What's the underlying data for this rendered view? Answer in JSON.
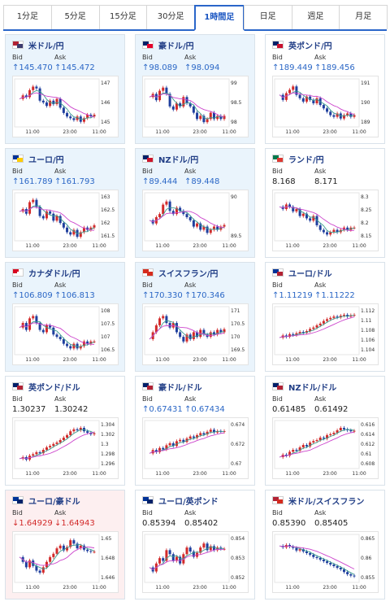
{
  "tabs": [
    "1分足",
    "5分足",
    "15分足",
    "30分足",
    "1時間足",
    "日足",
    "週足",
    "月足"
  ],
  "active_tab": 4,
  "labels": {
    "bid": "Bid",
    "ask": "Ask"
  },
  "colors": {
    "up": "#2b67c6",
    "down": "#d22a2a",
    "ma_short": "#3a9c8f",
    "ma_long": "#cc44cc",
    "candle_up": "#d22a2a",
    "candle_down": "#1f3f9e"
  },
  "cards": [
    {
      "name": "米ドル/円",
      "flag": [
        "#b22234",
        "#3c3b6e"
      ],
      "bid": "↑145.470",
      "ask": "↑145.472",
      "direction": "up",
      "bg": "blue",
      "y_ticks": [
        "147",
        "146",
        "145"
      ],
      "x_ticks": [
        "11:00",
        "23:00",
        "11:00"
      ],
      "series": [
        146.4,
        146.6,
        146.5,
        146.9,
        147.1,
        147.0,
        146.3,
        146.2,
        146.0,
        146.3,
        146.1,
        146.4,
        145.9,
        145.6,
        145.4,
        145.3,
        145.2,
        145.4,
        145.1,
        145.3,
        145.5,
        145.4,
        145.5
      ],
      "yrange": [
        144.9,
        147.4
      ]
    },
    {
      "name": "豪ドル/円",
      "flag": [
        "#012169",
        "#e4002b"
      ],
      "bid": "↑98.089",
      "ask": "↑98.094",
      "direction": "up",
      "bg": "blue",
      "y_ticks": [
        "99",
        "98.5",
        "98"
      ],
      "x_ticks": [
        "11:00",
        "23:00",
        "11:00"
      ],
      "series": [
        98.7,
        98.8,
        98.6,
        98.9,
        99.0,
        98.8,
        98.4,
        98.3,
        98.5,
        98.4,
        98.7,
        98.5,
        98.4,
        98.2,
        98.0,
        98.1,
        97.9,
        98.0,
        98.2,
        98.0,
        98.1,
        98.0,
        98.1
      ],
      "yrange": [
        97.8,
        99.2
      ]
    },
    {
      "name": "英ポンド/円",
      "flag": [
        "#012169",
        "#c8102e"
      ],
      "bid": "↑189.449",
      "ask": "↑189.456",
      "direction": "up",
      "bg": "plain",
      "y_ticks": [
        "191",
        "190",
        "189"
      ],
      "x_ticks": [
        "11:00",
        "23:00",
        "11:00"
      ],
      "series": [
        190.6,
        190.3,
        190.7,
        190.9,
        191.1,
        190.6,
        190.4,
        190.2,
        190.5,
        190.3,
        190.1,
        190.4,
        190.0,
        189.8,
        189.6,
        189.4,
        189.3,
        189.5,
        189.2,
        189.4,
        189.5,
        189.3,
        189.4
      ],
      "yrange": [
        188.8,
        191.4
      ]
    },
    {
      "name": "ユーロ/円",
      "flag": [
        "#003399",
        "#ffcc00"
      ],
      "bid": "↑161.789",
      "ask": "↑161.793",
      "direction": "up",
      "bg": "blue",
      "y_ticks": [
        "163",
        "162.5",
        "162",
        "161.5"
      ],
      "x_ticks": [
        "11:00",
        "23:00",
        "11:00"
      ],
      "series": [
        162.4,
        162.5,
        162.3,
        162.8,
        162.9,
        162.6,
        162.2,
        162.1,
        162.4,
        162.3,
        162.0,
        162.2,
        161.9,
        161.7,
        161.5,
        161.4,
        161.6,
        161.3,
        161.5,
        161.7,
        161.6,
        161.7,
        161.8
      ],
      "yrange": [
        161.2,
        163.1
      ]
    },
    {
      "name": "NZドル/円",
      "flag": [
        "#012169",
        "#cc142b"
      ],
      "bid": "↑89.444",
      "ask": "↑89.448",
      "direction": "up",
      "bg": "blue",
      "y_ticks": [
        "90",
        "89.5"
      ],
      "x_ticks": [
        "11:00",
        "23:00",
        "11:00"
      ],
      "series": [
        89.6,
        89.5,
        89.7,
        89.8,
        90.1,
        90.2,
        89.9,
        89.8,
        90.0,
        89.9,
        89.8,
        89.7,
        89.6,
        89.4,
        89.5,
        89.3,
        89.4,
        89.2,
        89.3,
        89.4,
        89.3,
        89.4,
        89.45
      ],
      "yrange": [
        89.0,
        90.4
      ]
    },
    {
      "name": "ランド/円",
      "flag": [
        "#007a4d",
        "#de3831"
      ],
      "bid": "8.168",
      "ask": "8.171",
      "direction": "none",
      "bg": "plain",
      "y_ticks": [
        "8.3",
        "8.25",
        "8.2",
        "8.15"
      ],
      "x_ticks": [
        "11:00",
        "23:00",
        "11:00"
      ],
      "series": [
        8.26,
        8.25,
        8.27,
        8.26,
        8.24,
        8.25,
        8.22,
        8.23,
        8.21,
        8.2,
        8.22,
        8.18,
        8.16,
        8.15,
        8.14,
        8.15,
        8.16,
        8.15,
        8.16,
        8.17,
        8.16,
        8.17,
        8.17
      ],
      "yrange": [
        8.12,
        8.31
      ]
    },
    {
      "name": "カナダドル/円",
      "flag": [
        "#d80621",
        "#ffffff"
      ],
      "bid": "↑106.809",
      "ask": "↑106.813",
      "direction": "up",
      "bg": "blue",
      "y_ticks": [
        "108",
        "107.5",
        "107",
        "106.5"
      ],
      "x_ticks": [
        "11:00",
        "23:00",
        "11:00"
      ],
      "series": [
        107.4,
        107.6,
        107.3,
        107.8,
        107.9,
        107.6,
        107.3,
        107.2,
        107.5,
        107.4,
        107.1,
        107.0,
        106.9,
        106.7,
        106.6,
        106.5,
        106.7,
        106.5,
        106.6,
        106.8,
        106.7,
        106.8,
        106.8
      ],
      "yrange": [
        106.3,
        108.2
      ]
    },
    {
      "name": "スイスフラン/円",
      "flag": [
        "#d52b1e",
        "#d52b1e"
      ],
      "bid": "↑170.330",
      "ask": "↑170.346",
      "direction": "up",
      "bg": "blue",
      "y_ticks": [
        "171",
        "170.5",
        "170",
        "169.5"
      ],
      "x_ticks": [
        "11:00",
        "23:00",
        "11:00"
      ],
      "series": [
        169.9,
        170.2,
        170.5,
        170.8,
        170.9,
        170.6,
        170.4,
        170.6,
        170.2,
        170.0,
        169.8,
        170.1,
        169.9,
        170.2,
        170.0,
        170.3,
        170.1,
        170.0,
        170.2,
        170.1,
        170.3,
        170.2,
        170.33
      ],
      "yrange": [
        169.3,
        171.2
      ]
    },
    {
      "name": "ユーロ/ドル",
      "flag": [
        "#003399",
        "#b22234"
      ],
      "bid": "↑1.11219",
      "ask": "↑1.11222",
      "direction": "up",
      "bg": "plain",
      "y_ticks": [
        "1.112",
        "1.11",
        "1.108",
        "1.106",
        "1.104"
      ],
      "x_ticks": [
        "11:00",
        "23:00",
        "11:00"
      ],
      "series": [
        1.107,
        1.1075,
        1.1072,
        1.1078,
        1.1076,
        1.108,
        1.1083,
        1.1081,
        1.1085,
        1.109,
        1.1093,
        1.1098,
        1.1102,
        1.1108,
        1.1112,
        1.1115,
        1.1118,
        1.1116,
        1.112,
        1.1122,
        1.1118,
        1.1121,
        1.1122
      ],
      "yrange": [
        1.1035,
        1.1135
      ]
    },
    {
      "name": "英ポンド/ドル",
      "flag": [
        "#012169",
        "#b22234"
      ],
      "bid": "1.30237",
      "ask": "1.30242",
      "direction": "none",
      "bg": "plain",
      "y_ticks": [
        "1.304",
        "1.302",
        "1.3",
        "1.298",
        "1.296"
      ],
      "x_ticks": [
        "11:00",
        "23:00",
        "11:00"
      ],
      "series": [
        1.2972,
        1.2975,
        1.297,
        1.2978,
        1.2981,
        1.2985,
        1.2983,
        1.299,
        1.2995,
        1.2998,
        1.3002,
        1.3005,
        1.301,
        1.3015,
        1.302,
        1.3028,
        1.3032,
        1.303,
        1.3035,
        1.3028,
        1.3025,
        1.3022,
        1.3024
      ],
      "yrange": [
        1.2955,
        1.3045
      ]
    },
    {
      "name": "豪ドル/ドル",
      "flag": [
        "#012169",
        "#b22234"
      ],
      "bid": "↑0.67431",
      "ask": "↑0.67434",
      "direction": "up",
      "bg": "plain",
      "y_ticks": [
        "0.674",
        "0.672",
        "0.67"
      ],
      "x_ticks": [
        "11:00",
        "23:00",
        "11:00"
      ],
      "series": [
        0.671,
        0.6715,
        0.6712,
        0.6718,
        0.6716,
        0.6722,
        0.6725,
        0.6721,
        0.6728,
        0.673,
        0.6727,
        0.6732,
        0.6735,
        0.6733,
        0.6737,
        0.674,
        0.6738,
        0.6742,
        0.6745,
        0.6741,
        0.6743,
        0.6742,
        0.6743
      ],
      "yrange": [
        0.669,
        0.6755
      ]
    },
    {
      "name": "NZドル/ドル",
      "flag": [
        "#012169",
        "#b22234"
      ],
      "bid": "0.61485",
      "ask": "0.61492",
      "direction": "none",
      "bg": "plain",
      "y_ticks": [
        "0.616",
        "0.614",
        "0.612",
        "0.61",
        "0.608"
      ],
      "x_ticks": [
        "11:00",
        "23:00",
        "11:00"
      ],
      "series": [
        0.6095,
        0.61,
        0.6098,
        0.6106,
        0.611,
        0.6108,
        0.6115,
        0.612,
        0.6117,
        0.6125,
        0.6128,
        0.613,
        0.6135,
        0.6133,
        0.614,
        0.6142,
        0.6145,
        0.615,
        0.6155,
        0.6152,
        0.615,
        0.6148,
        0.6149
      ],
      "yrange": [
        0.6075,
        0.6165
      ]
    },
    {
      "name": "ユーロ/豪ドル",
      "flag": [
        "#003399",
        "#012169"
      ],
      "bid": "↓1.64929",
      "ask": "↓1.64943",
      "direction": "down",
      "bg": "pink",
      "y_ticks": [
        "1.65",
        "1.648",
        "1.646"
      ],
      "x_ticks": [
        "11:00",
        "23:00",
        "11:00"
      ],
      "series": [
        1.6485,
        1.6478,
        1.647,
        1.648,
        1.6472,
        1.6465,
        1.6462,
        1.647,
        1.6478,
        1.6485,
        1.649,
        1.6498,
        1.6502,
        1.6495,
        1.65,
        1.651,
        1.6505,
        1.6498,
        1.6502,
        1.6496,
        1.6494,
        1.6493,
        1.6493
      ],
      "yrange": [
        1.645,
        1.6515
      ]
    },
    {
      "name": "ユーロ/英ポンド",
      "flag": [
        "#003399",
        "#012169"
      ],
      "bid": "0.85394",
      "ask": "0.85402",
      "direction": "none",
      "bg": "plain",
      "y_ticks": [
        "0.854",
        "0.853",
        "0.852"
      ],
      "x_ticks": [
        "11:00",
        "23:00",
        "11:00"
      ],
      "series": [
        0.8525,
        0.8522,
        0.8528,
        0.8532,
        0.853,
        0.8538,
        0.8535,
        0.853,
        0.8533,
        0.8528,
        0.8535,
        0.854,
        0.8537,
        0.8533,
        0.8536,
        0.854,
        0.8543,
        0.8538,
        0.8541,
        0.8538,
        0.854,
        0.8539,
        0.8539
      ],
      "yrange": [
        0.8515,
        0.8548
      ]
    },
    {
      "name": "米ドル/スイスフラン",
      "flag": [
        "#b22234",
        "#d52b1e"
      ],
      "bid": "0.85390",
      "ask": "0.85405",
      "direction": "none",
      "bg": "plain",
      "y_ticks": [
        "0.865",
        "0.86",
        "0.855"
      ],
      "x_ticks": [
        "11:00",
        "23:00",
        "11:00"
      ],
      "series": [
        0.8632,
        0.8628,
        0.8635,
        0.863,
        0.8626,
        0.8618,
        0.8622,
        0.8615,
        0.861,
        0.8605,
        0.8598,
        0.8595,
        0.859,
        0.8585,
        0.858,
        0.8575,
        0.857,
        0.8565,
        0.856,
        0.8552,
        0.8545,
        0.8541,
        0.8539
      ],
      "yrange": [
        0.8525,
        0.866
      ]
    }
  ]
}
